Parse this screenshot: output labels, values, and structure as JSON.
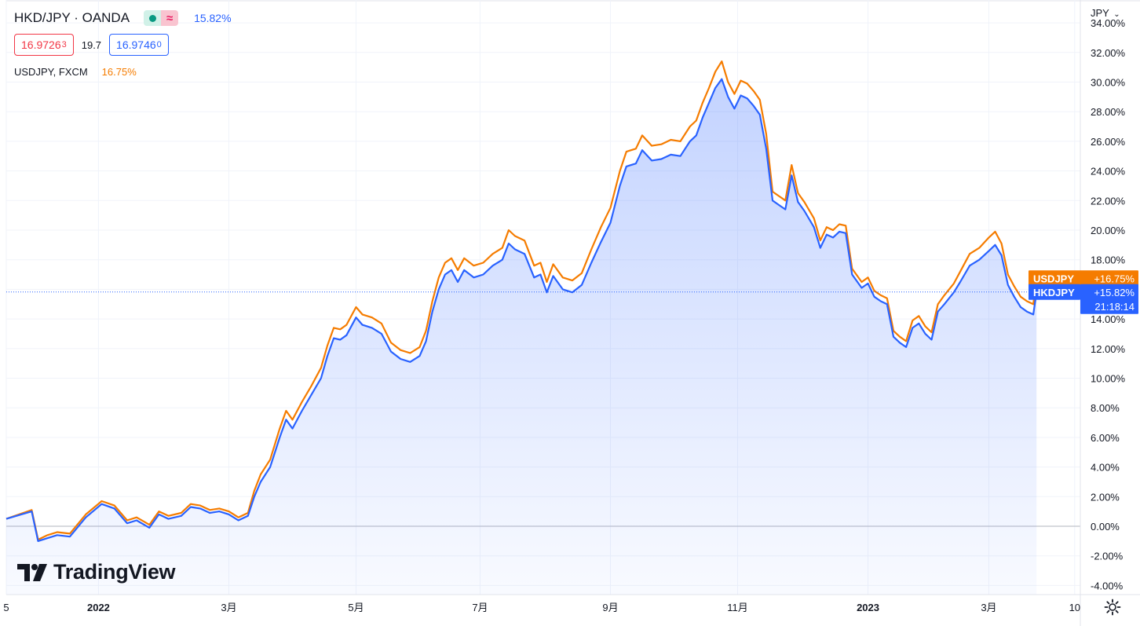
{
  "header": {
    "symbol_title": "HKD/JPY · OANDA",
    "main_change": "15.82%",
    "bid": "16.9726",
    "bid_sup": "3",
    "spread": "19.7",
    "ask": "16.9746",
    "ask_sup": "0",
    "compare_symbol": "USDJPY, FXCM",
    "compare_change": "16.75%",
    "currency": "JPY",
    "currency_icon": "chevron-down-icon"
  },
  "logo": {
    "text": "TradingView"
  },
  "colors": {
    "main_line": "#2962ff",
    "compare_line": "#f57c00",
    "area_fill": "#2962ff",
    "grid": "#f0f3fa",
    "zero_line": "#b2b5be",
    "axis_text": "#131722",
    "bid": "#f23645",
    "status_ok": "#089981"
  },
  "price_labels": {
    "compare_name": "USDJPY",
    "compare_value": "+16.75%",
    "main_name": "HKDJPY",
    "main_value": "+15.82%",
    "countdown": "21:18:14"
  },
  "chart_data": {
    "type": "line",
    "x_unit": "trading bar index from start of visible range",
    "ylabel": "%",
    "ylim": [
      -4,
      34
    ],
    "y_ticks": [
      -4,
      -2,
      0,
      2,
      4,
      6,
      8,
      10,
      12,
      14,
      16,
      18,
      20,
      22,
      24,
      26,
      28,
      30,
      32,
      34
    ],
    "y_tick_labels": [
      "-4.00%",
      "-2.00%",
      "0.00%",
      "2.00%",
      "4.00%",
      "6.00%",
      "8.00%",
      "10.00%",
      "12.00%",
      "14.00%",
      "16.00%",
      "18.00%",
      "20.00%",
      "22.00%",
      "24.00%",
      "26.00%",
      "28.00%",
      "30.00%",
      "32.00%",
      "34.00%"
    ],
    "x_ticks": [
      {
        "label": "5",
        "pos": 0
      },
      {
        "label": "2022",
        "pos": 29
      },
      {
        "label": "3月",
        "pos": 70
      },
      {
        "label": "5月",
        "pos": 110
      },
      {
        "label": "7月",
        "pos": 149
      },
      {
        "label": "9月",
        "pos": 190
      },
      {
        "label": "11月",
        "pos": 230
      },
      {
        "label": "2023",
        "pos": 271
      },
      {
        "label": "3月",
        "pos": 309
      },
      {
        "label": "10",
        "pos": 336
      }
    ],
    "x_max": 344,
    "grid": true,
    "series": [
      {
        "name": "HKDJPY",
        "style": "area",
        "points": [
          [
            0,
            0.5
          ],
          [
            8,
            1.0
          ],
          [
            10,
            -1.0
          ],
          [
            13,
            -0.8
          ],
          [
            16,
            -0.6
          ],
          [
            20,
            -0.7
          ],
          [
            25,
            0.6
          ],
          [
            30,
            1.5
          ],
          [
            34,
            1.2
          ],
          [
            38,
            0.2
          ],
          [
            41,
            0.4
          ],
          [
            45,
            -0.1
          ],
          [
            48,
            0.8
          ],
          [
            51,
            0.5
          ],
          [
            55,
            0.7
          ],
          [
            58,
            1.3
          ],
          [
            61,
            1.2
          ],
          [
            64,
            0.9
          ],
          [
            67,
            1.0
          ],
          [
            70,
            0.8
          ],
          [
            73,
            0.4
          ],
          [
            76,
            0.7
          ],
          [
            78,
            2.0
          ],
          [
            80,
            3.0
          ],
          [
            83,
            4.0
          ],
          [
            86,
            6.0
          ],
          [
            88,
            7.2
          ],
          [
            90,
            6.6
          ],
          [
            93,
            7.8
          ],
          [
            96,
            8.9
          ],
          [
            99,
            10.0
          ],
          [
            101,
            11.5
          ],
          [
            103,
            12.7
          ],
          [
            105,
            12.6
          ],
          [
            107,
            12.9
          ],
          [
            110,
            14.1
          ],
          [
            112,
            13.6
          ],
          [
            115,
            13.4
          ],
          [
            118,
            13.0
          ],
          [
            121,
            11.8
          ],
          [
            124,
            11.3
          ],
          [
            127,
            11.1
          ],
          [
            130,
            11.5
          ],
          [
            132,
            12.5
          ],
          [
            134,
            14.5
          ],
          [
            136,
            16.0
          ],
          [
            138,
            17.0
          ],
          [
            140,
            17.3
          ],
          [
            142,
            16.5
          ],
          [
            144,
            17.3
          ],
          [
            147,
            16.8
          ],
          [
            150,
            17.0
          ],
          [
            153,
            17.6
          ],
          [
            156,
            18.0
          ],
          [
            158,
            19.1
          ],
          [
            160,
            18.7
          ],
          [
            163,
            18.4
          ],
          [
            166,
            16.8
          ],
          [
            168,
            17.0
          ],
          [
            170,
            15.8
          ],
          [
            172,
            16.9
          ],
          [
            175,
            16.0
          ],
          [
            178,
            15.8
          ],
          [
            181,
            16.3
          ],
          [
            184,
            17.8
          ],
          [
            187,
            19.2
          ],
          [
            190,
            20.5
          ],
          [
            193,
            23.0
          ],
          [
            195,
            24.3
          ],
          [
            198,
            24.5
          ],
          [
            200,
            25.4
          ],
          [
            203,
            24.7
          ],
          [
            206,
            24.8
          ],
          [
            209,
            25.1
          ],
          [
            212,
            25.0
          ],
          [
            215,
            26.0
          ],
          [
            217,
            26.4
          ],
          [
            219,
            27.6
          ],
          [
            221,
            28.6
          ],
          [
            223,
            29.6
          ],
          [
            225,
            30.2
          ],
          [
            227,
            29.0
          ],
          [
            229,
            28.2
          ],
          [
            231,
            29.1
          ],
          [
            233,
            28.9
          ],
          [
            235,
            28.4
          ],
          [
            237,
            27.8
          ],
          [
            239,
            25.5
          ],
          [
            241,
            22.0
          ],
          [
            243,
            21.7
          ],
          [
            245,
            21.4
          ],
          [
            247,
            23.7
          ],
          [
            249,
            21.9
          ],
          [
            251,
            21.3
          ],
          [
            254,
            20.2
          ],
          [
            256,
            18.8
          ],
          [
            258,
            19.7
          ],
          [
            260,
            19.5
          ],
          [
            262,
            19.9
          ],
          [
            264,
            19.8
          ],
          [
            266,
            17.0
          ],
          [
            269,
            16.1
          ],
          [
            271,
            16.4
          ],
          [
            273,
            15.5
          ],
          [
            275,
            15.2
          ],
          [
            277,
            15.0
          ],
          [
            279,
            12.8
          ],
          [
            281,
            12.4
          ],
          [
            283,
            12.1
          ],
          [
            285,
            13.4
          ],
          [
            287,
            13.7
          ],
          [
            289,
            13.0
          ],
          [
            291,
            12.6
          ],
          [
            293,
            14.5
          ],
          [
            295,
            15.0
          ],
          [
            298,
            15.8
          ],
          [
            300,
            16.5
          ],
          [
            303,
            17.6
          ],
          [
            306,
            18.0
          ],
          [
            309,
            18.6
          ],
          [
            311,
            19.0
          ],
          [
            313,
            18.3
          ],
          [
            315,
            16.3
          ],
          [
            317,
            15.5
          ],
          [
            319,
            14.8
          ],
          [
            321,
            14.5
          ],
          [
            323,
            14.3
          ],
          [
            324,
            15.82
          ]
        ]
      },
      {
        "name": "USDJPY",
        "style": "line",
        "points": [
          [
            0,
            0.5
          ],
          [
            8,
            1.1
          ],
          [
            10,
            -0.9
          ],
          [
            13,
            -0.6
          ],
          [
            16,
            -0.4
          ],
          [
            20,
            -0.5
          ],
          [
            25,
            0.8
          ],
          [
            30,
            1.7
          ],
          [
            34,
            1.4
          ],
          [
            38,
            0.4
          ],
          [
            41,
            0.6
          ],
          [
            45,
            0.1
          ],
          [
            48,
            1.0
          ],
          [
            51,
            0.7
          ],
          [
            55,
            0.9
          ],
          [
            58,
            1.5
          ],
          [
            61,
            1.4
          ],
          [
            64,
            1.1
          ],
          [
            67,
            1.2
          ],
          [
            70,
            1.0
          ],
          [
            73,
            0.6
          ],
          [
            76,
            0.9
          ],
          [
            78,
            2.4
          ],
          [
            80,
            3.5
          ],
          [
            83,
            4.5
          ],
          [
            86,
            6.6
          ],
          [
            88,
            7.8
          ],
          [
            90,
            7.2
          ],
          [
            93,
            8.4
          ],
          [
            96,
            9.5
          ],
          [
            99,
            10.7
          ],
          [
            101,
            12.2
          ],
          [
            103,
            13.4
          ],
          [
            105,
            13.3
          ],
          [
            107,
            13.6
          ],
          [
            110,
            14.8
          ],
          [
            112,
            14.3
          ],
          [
            115,
            14.1
          ],
          [
            118,
            13.7
          ],
          [
            121,
            12.4
          ],
          [
            124,
            11.9
          ],
          [
            127,
            11.7
          ],
          [
            130,
            12.1
          ],
          [
            132,
            13.2
          ],
          [
            134,
            15.2
          ],
          [
            136,
            16.8
          ],
          [
            138,
            17.8
          ],
          [
            140,
            18.1
          ],
          [
            142,
            17.3
          ],
          [
            144,
            18.1
          ],
          [
            147,
            17.6
          ],
          [
            150,
            17.8
          ],
          [
            153,
            18.4
          ],
          [
            156,
            18.8
          ],
          [
            158,
            20.0
          ],
          [
            160,
            19.6
          ],
          [
            163,
            19.3
          ],
          [
            166,
            17.6
          ],
          [
            168,
            17.8
          ],
          [
            170,
            16.5
          ],
          [
            172,
            17.7
          ],
          [
            175,
            16.8
          ],
          [
            178,
            16.6
          ],
          [
            181,
            17.1
          ],
          [
            184,
            18.7
          ],
          [
            187,
            20.2
          ],
          [
            190,
            21.5
          ],
          [
            193,
            24.0
          ],
          [
            195,
            25.3
          ],
          [
            198,
            25.5
          ],
          [
            200,
            26.4
          ],
          [
            203,
            25.7
          ],
          [
            206,
            25.8
          ],
          [
            209,
            26.1
          ],
          [
            212,
            26.0
          ],
          [
            215,
            27.0
          ],
          [
            217,
            27.4
          ],
          [
            219,
            28.6
          ],
          [
            221,
            29.6
          ],
          [
            223,
            30.7
          ],
          [
            225,
            31.4
          ],
          [
            227,
            30.0
          ],
          [
            229,
            29.2
          ],
          [
            231,
            30.1
          ],
          [
            233,
            29.9
          ],
          [
            235,
            29.4
          ],
          [
            237,
            28.8
          ],
          [
            239,
            26.5
          ],
          [
            241,
            22.6
          ],
          [
            243,
            22.3
          ],
          [
            245,
            22.0
          ],
          [
            247,
            24.4
          ],
          [
            249,
            22.5
          ],
          [
            251,
            21.9
          ],
          [
            254,
            20.8
          ],
          [
            256,
            19.3
          ],
          [
            258,
            20.2
          ],
          [
            260,
            20.0
          ],
          [
            262,
            20.4
          ],
          [
            264,
            20.3
          ],
          [
            266,
            17.4
          ],
          [
            269,
            16.5
          ],
          [
            271,
            16.8
          ],
          [
            273,
            15.9
          ],
          [
            275,
            15.6
          ],
          [
            277,
            15.4
          ],
          [
            279,
            13.2
          ],
          [
            281,
            12.8
          ],
          [
            283,
            12.5
          ],
          [
            285,
            13.9
          ],
          [
            287,
            14.2
          ],
          [
            289,
            13.5
          ],
          [
            291,
            13.1
          ],
          [
            293,
            15.0
          ],
          [
            295,
            15.6
          ],
          [
            298,
            16.4
          ],
          [
            300,
            17.2
          ],
          [
            303,
            18.4
          ],
          [
            306,
            18.8
          ],
          [
            309,
            19.5
          ],
          [
            311,
            19.9
          ],
          [
            313,
            19.1
          ],
          [
            315,
            17.0
          ],
          [
            317,
            16.2
          ],
          [
            319,
            15.5
          ],
          [
            321,
            15.2
          ],
          [
            323,
            15.0
          ],
          [
            324,
            16.75
          ]
        ]
      }
    ]
  }
}
